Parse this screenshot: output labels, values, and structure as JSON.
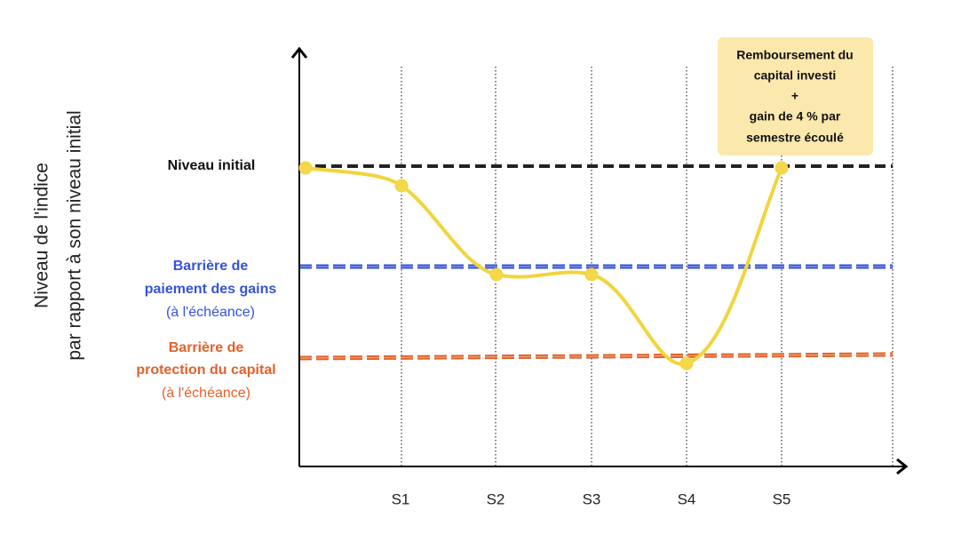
{
  "y_axis_label": [
    "Niveau de l'indice",
    "par rapport à son niveau initial"
  ],
  "levels": [
    {
      "lines": [
        "Niveau initial"
      ]
    },
    {
      "lines": [
        "Barrière de",
        "paiement des gains"
      ],
      "note": "(à l'échéance)"
    },
    {
      "lines": [
        "Barrière de",
        "protection du capital"
      ],
      "note": "(à l'échéance)"
    }
  ],
  "x_labels": [
    "S1",
    "S2",
    "S3",
    "S4",
    "S5"
  ],
  "callout": [
    "Remboursement du",
    "capital investi",
    "+",
    "gain de 4 % par",
    "semestre écoulé"
  ]
}
